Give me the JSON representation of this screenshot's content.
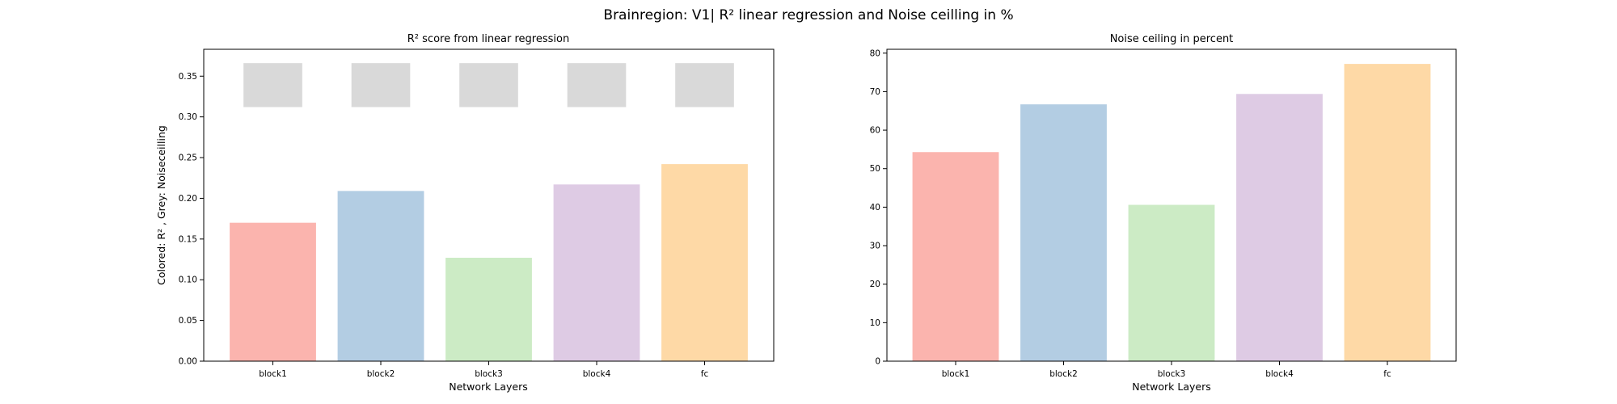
{
  "figure": {
    "suptitle": "Brainregion: V1| R² linear regression and Noise ceilling in %"
  },
  "chart_data": [
    {
      "type": "bar",
      "title": "R² score from linear regression",
      "xlabel": "Network Layers",
      "ylabel": "Colored: R² , Grey: Noiseceilling",
      "categories": [
        "block1",
        "block2",
        "block3",
        "block4",
        "fc"
      ],
      "ylim": [
        0,
        0.383
      ],
      "yticks": [
        0.0,
        0.05,
        0.1,
        0.15,
        0.2,
        0.25,
        0.3,
        0.35
      ],
      "ytick_labels": [
        "0.00",
        "0.05",
        "0.10",
        "0.15",
        "0.20",
        "0.25",
        "0.30",
        "0.35"
      ],
      "series": [
        {
          "name": "R²",
          "values": [
            0.17,
            0.209,
            0.127,
            0.217,
            0.242
          ]
        },
        {
          "name": "Noiseceilling",
          "values": [
            0.339,
            0.339,
            0.339,
            0.339,
            0.339
          ],
          "error": [
            0.027,
            0.027,
            0.027,
            0.027,
            0.027
          ]
        }
      ],
      "colors": [
        "#fbb4ae",
        "#b3cde3",
        "#ccebc5",
        "#decbe4",
        "#fed9a6"
      ],
      "noise_color": "#d9d9d9",
      "grid": false
    },
    {
      "type": "bar",
      "title": "Noise ceiling in percent",
      "xlabel": "Network Layers",
      "ylabel": "",
      "categories": [
        "block1",
        "block2",
        "block3",
        "block4",
        "fc"
      ],
      "ylim": [
        0,
        81
      ],
      "yticks": [
        0,
        10,
        20,
        30,
        40,
        50,
        60,
        70,
        80
      ],
      "ytick_labels": [
        "0",
        "10",
        "20",
        "30",
        "40",
        "50",
        "60",
        "70",
        "80"
      ],
      "series": [
        {
          "name": "Noise ceiling %",
          "values": [
            54.3,
            66.7,
            40.6,
            69.4,
            77.2
          ]
        }
      ],
      "colors": [
        "#fbb4ae",
        "#b3cde3",
        "#ccebc5",
        "#decbe4",
        "#fed9a6"
      ],
      "grid": false
    }
  ]
}
